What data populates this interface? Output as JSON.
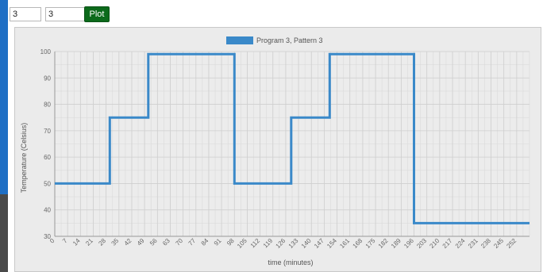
{
  "controls": {
    "input_1_value": "3",
    "input_2_value": "3",
    "plot_label": "Plot"
  },
  "colors": {
    "series": "#3a89c9",
    "accent_bar": "#1f6fc5",
    "plot_button": "#0c6a1b"
  },
  "chart_data": {
    "type": "line",
    "xlabel": "time (minutes)",
    "ylabel": "Temperature (Celsius)",
    "ylim": [
      30,
      100
    ],
    "yticks": [
      30,
      40,
      50,
      60,
      70,
      80,
      90,
      100
    ],
    "xlim": [
      0,
      259
    ],
    "xticks": [
      0,
      7,
      14,
      21,
      28,
      35,
      42,
      49,
      56,
      63,
      70,
      77,
      84,
      91,
      98,
      105,
      112,
      119,
      126,
      133,
      140,
      147,
      154,
      161,
      168,
      175,
      182,
      189,
      196,
      203,
      210,
      217,
      224,
      231,
      238,
      245,
      252
    ],
    "grid": true,
    "legend_position": "top-center",
    "series": [
      {
        "name": "Program 3, Pattern 3",
        "color": "#3a89c9",
        "x": [
          0,
          30,
          30,
          51,
          51,
          98,
          98,
          129,
          129,
          150,
          150,
          196,
          196,
          259
        ],
        "y": [
          50,
          50,
          75,
          75,
          99,
          99,
          50,
          50,
          75,
          75,
          99,
          99,
          35,
          35
        ]
      }
    ]
  }
}
